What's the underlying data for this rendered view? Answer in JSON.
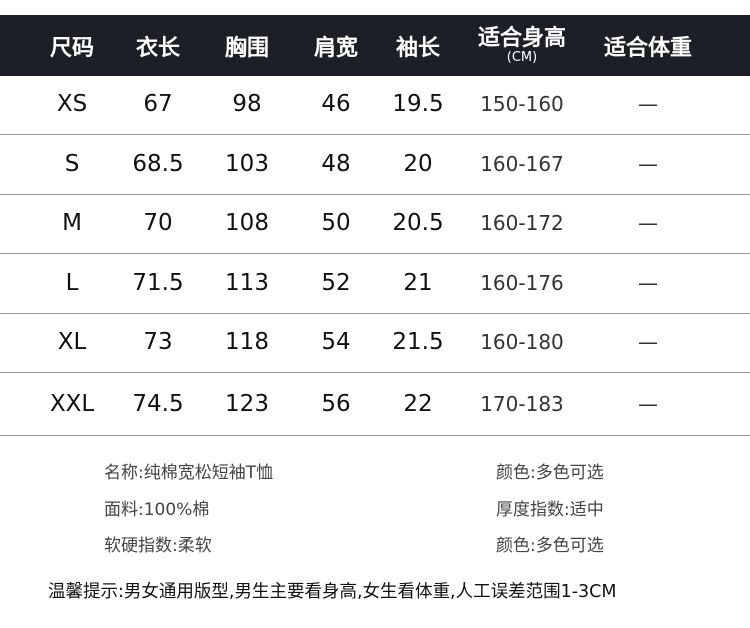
{
  "table": {
    "headers": [
      {
        "label": "尺码"
      },
      {
        "label": "衣长"
      },
      {
        "label": "胸围"
      },
      {
        "label": "肩宽"
      },
      {
        "label": "袖长"
      },
      {
        "label": "适合身高",
        "sub": "(CM)"
      },
      {
        "label": "适合体重"
      }
    ],
    "rows": [
      [
        "XS",
        "67",
        "98",
        "46",
        "19.5",
        "150-160",
        "—"
      ],
      [
        "S",
        "68.5",
        "103",
        "48",
        "20",
        "160-167",
        "—"
      ],
      [
        "M",
        "70",
        "108",
        "50",
        "20.5",
        "160-172",
        "—"
      ],
      [
        "L",
        "71.5",
        "113",
        "52",
        "21",
        "160-176",
        "—"
      ],
      [
        "XL",
        "73",
        "118",
        "54",
        "21.5",
        "160-180",
        "—"
      ],
      [
        "XXL",
        "74.5",
        "123",
        "56",
        "22",
        "170-183",
        "—"
      ]
    ]
  },
  "info": {
    "left": [
      "名称:纯棉宽松短袖T恤",
      "面料:100%棉",
      "软硬指数:柔软"
    ],
    "right": [
      "颜色:多色可选",
      "厚度指数:适中",
      "颜色:多色可选"
    ]
  },
  "tip": "温馨提示:男女通用版型,男生主要看身高,女生看体重,人工误差范围1-3CM",
  "colors": {
    "header_bg": "#1d1f26"
  }
}
